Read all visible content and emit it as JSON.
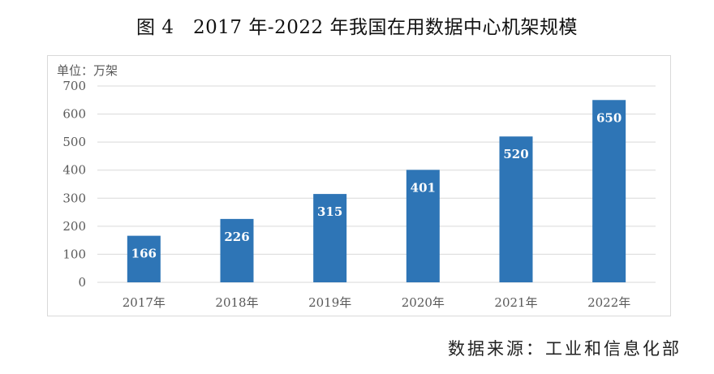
{
  "figure": {
    "title": "图 4　2017 年-2022 年我国在用数据中心机架规模",
    "unit_label": "单位：万架",
    "source": "数据来源：工业和信息化部"
  },
  "colors": {
    "bar": "#2e75b6",
    "bar_label": "#ffffff",
    "grid": "#d9d9d9",
    "axis_text": "#595959"
  },
  "chart_data": {
    "type": "bar",
    "title": "图 4　2017 年-2022 年我国在用数据中心机架规模",
    "ylabel": "单位：万架",
    "xlabel": "",
    "categories": [
      "2017年",
      "2018年",
      "2019年",
      "2020年",
      "2021年",
      "2022年"
    ],
    "values": [
      166,
      226,
      315,
      401,
      520,
      650
    ],
    "data_labels": [
      "166",
      "226",
      "315",
      "401",
      "520",
      "650"
    ],
    "ylim": [
      0,
      700
    ],
    "yticks": [
      0,
      100,
      200,
      300,
      400,
      500,
      600,
      700
    ],
    "ytick_labels": [
      "0",
      "100",
      "200",
      "300",
      "400",
      "500",
      "600",
      "700"
    ],
    "grid": true,
    "legend": "none"
  }
}
